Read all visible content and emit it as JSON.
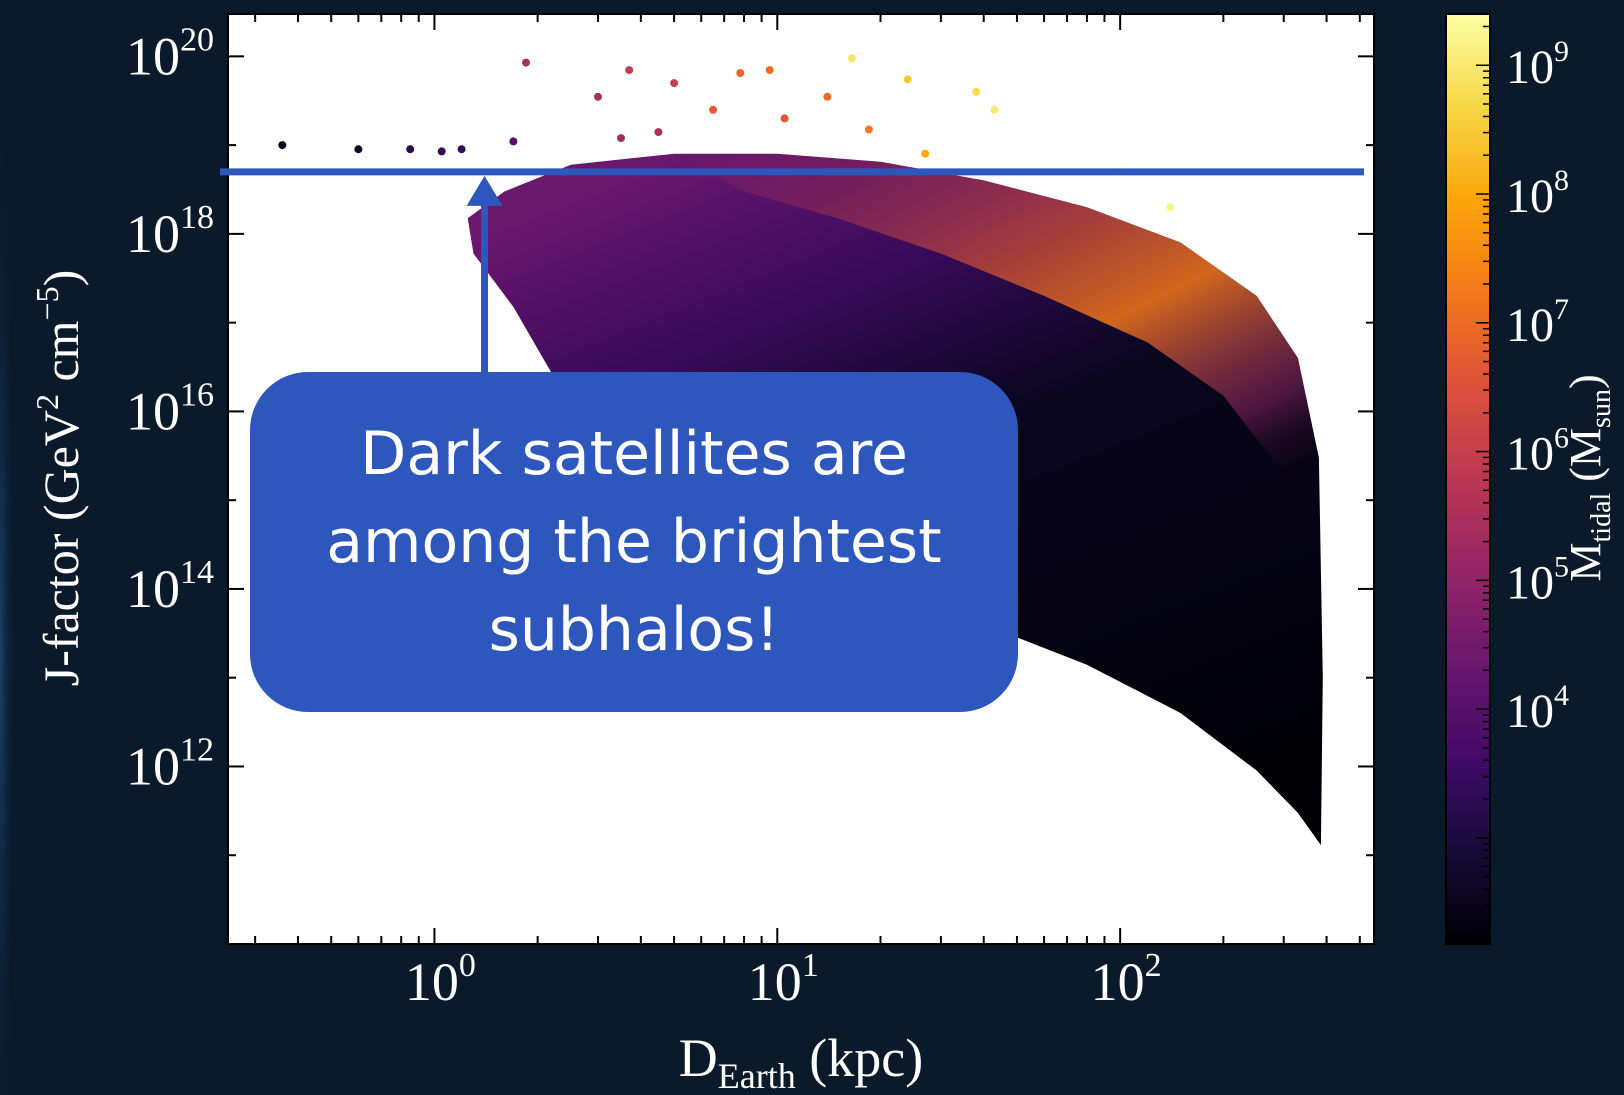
{
  "chart_data": {
    "type": "scatter",
    "title": "",
    "xlabel": {
      "base": "D",
      "sub": "Earth",
      "rest": " (kpc)"
    },
    "ylabel": {
      "base": "J-factor (GeV",
      "sup1": "2",
      "mid": " cm",
      "sup2": "−5",
      "end": ")"
    },
    "x_scale": "log",
    "y_scale": "log",
    "xlim": [
      0.25,
      550
    ],
    "ylim": [
      10000000000.0,
      3e+20
    ],
    "x_ticks": [
      {
        "value": 1,
        "base": "10",
        "exp": "0"
      },
      {
        "value": 10,
        "base": "10",
        "exp": "1"
      },
      {
        "value": 100,
        "base": "10",
        "exp": "2"
      }
    ],
    "y_ticks": [
      {
        "value": 1000000000000.0,
        "base": "10",
        "exp": "12"
      },
      {
        "value": 100000000000000.0,
        "base": "10",
        "exp": "14"
      },
      {
        "value": 1e+16,
        "base": "10",
        "exp": "16"
      },
      {
        "value": 1e+18,
        "base": "10",
        "exp": "18"
      },
      {
        "value": 1e+20,
        "base": "10",
        "exp": "20"
      }
    ],
    "grid": false,
    "colorbar": {
      "label": {
        "base": "M",
        "sub1": "tidal",
        "mid": " (M",
        "sub2": "sun",
        "end": ")"
      },
      "scale": "log",
      "range": [
        150,
        2500000000.0
      ],
      "colormap": "inferno",
      "ticks": [
        {
          "value": 10000.0,
          "base": "10",
          "exp": "4"
        },
        {
          "value": 100000.0,
          "base": "10",
          "exp": "5"
        },
        {
          "value": 1000000.0,
          "base": "10",
          "exp": "6"
        },
        {
          "value": 10000000.0,
          "base": "10",
          "exp": "7"
        },
        {
          "value": 100000000.0,
          "base": "10",
          "exp": "8"
        },
        {
          "value": 1000000000.0,
          "base": "10",
          "exp": "9"
        }
      ]
    },
    "reference_line": {
      "y": 5e+18,
      "color": "#2e57bd"
    },
    "arrow_x": 1.4,
    "points": [
      {
        "x": 0.36,
        "y": 1e+19,
        "m": 300
      },
      {
        "x": 0.6,
        "y": 9e+18,
        "m": 400
      },
      {
        "x": 0.85,
        "y": 9e+18,
        "m": 1500
      },
      {
        "x": 1.05,
        "y": 8.5e+18,
        "m": 2000
      },
      {
        "x": 1.2,
        "y": 9e+18,
        "m": 3000
      },
      {
        "x": 1.85,
        "y": 8.5e+19,
        "m": 300000.0
      },
      {
        "x": 1.7,
        "y": 1.1e+19,
        "m": 8000
      },
      {
        "x": 3.0,
        "y": 3.5e+19,
        "m": 300000.0
      },
      {
        "x": 3.5,
        "y": 1.2e+19,
        "m": 200000.0
      },
      {
        "x": 3.7,
        "y": 7e+19,
        "m": 1000000.0
      },
      {
        "x": 4.5,
        "y": 1.4e+19,
        "m": 300000.0
      },
      {
        "x": 5.0,
        "y": 5e+19,
        "m": 1000000.0
      },
      {
        "x": 6.5,
        "y": 2.5e+19,
        "m": 5000000.0
      },
      {
        "x": 7.8,
        "y": 6.5e+19,
        "m": 8000000.0
      },
      {
        "x": 9.5,
        "y": 7e+19,
        "m": 10000000.0
      },
      {
        "x": 10.5,
        "y": 2e+19,
        "m": 4000000.0
      },
      {
        "x": 14.0,
        "y": 3.5e+19,
        "m": 10000000.0
      },
      {
        "x": 16.5,
        "y": 9.5e+19,
        "m": 800000000.0
      },
      {
        "x": 18.5,
        "y": 1.5e+19,
        "m": 20000000.0
      },
      {
        "x": 24.0,
        "y": 5.5e+19,
        "m": 300000000.0
      },
      {
        "x": 27.0,
        "y": 8e+18,
        "m": 100000000.0
      },
      {
        "x": 38.0,
        "y": 4e+19,
        "m": 600000000.0
      },
      {
        "x": 43.0,
        "y": 2.5e+19,
        "m": 1000000000.0
      },
      {
        "x": 100.0,
        "y": 5e+18,
        "m": 2000000000.0
      },
      {
        "x": 140.0,
        "y": 2e+18,
        "m": 1500000000.0
      }
    ]
  },
  "callout": {
    "lines": [
      "Dark satellites are",
      "among the brightest",
      "subhalos!"
    ]
  }
}
